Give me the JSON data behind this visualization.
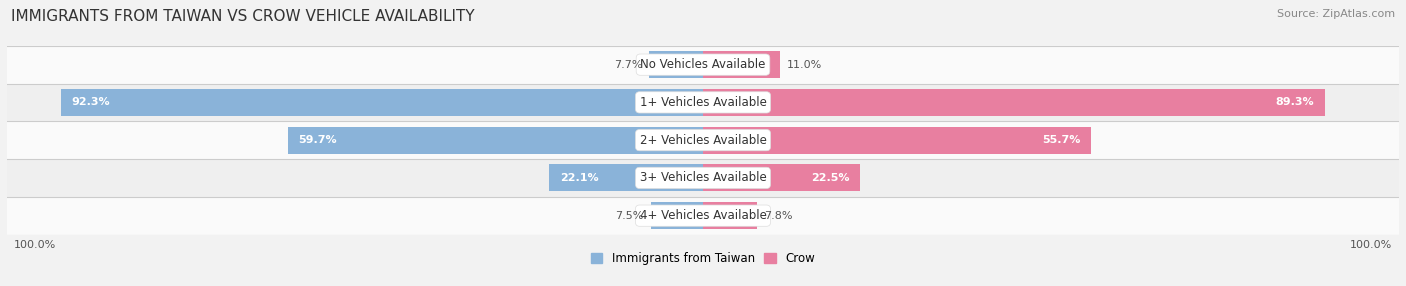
{
  "title": "IMMIGRANTS FROM TAIWAN VS CROW VEHICLE AVAILABILITY",
  "source": "Source: ZipAtlas.com",
  "categories": [
    "No Vehicles Available",
    "1+ Vehicles Available",
    "2+ Vehicles Available",
    "3+ Vehicles Available",
    "4+ Vehicles Available"
  ],
  "taiwan_values": [
    7.7,
    92.3,
    59.7,
    22.1,
    7.5
  ],
  "crow_values": [
    11.0,
    89.3,
    55.7,
    22.5,
    7.8
  ],
  "taiwan_color": "#8ab3d9",
  "crow_color": "#e87fa0",
  "taiwan_color_light": "#b8d0e8",
  "crow_color_light": "#f0aabf",
  "taiwan_label": "Immigrants from Taiwan",
  "crow_label": "Crow",
  "bg_color": "#f2f2f2",
  "row_colors": [
    "#fafafa",
    "#efefef"
  ],
  "divider_color": "#cccccc",
  "axis_label_left": "100.0%",
  "axis_label_right": "100.0%",
  "max_val": 100.0,
  "title_fontsize": 11,
  "label_fontsize": 8.5,
  "value_fontsize": 8.0,
  "source_fontsize": 8.0
}
